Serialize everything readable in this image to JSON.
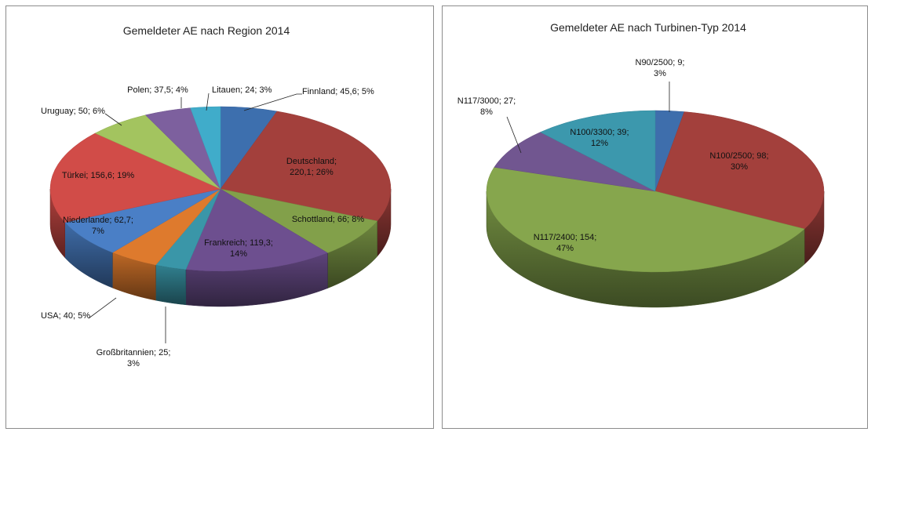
{
  "chart_data": [
    {
      "type": "pie",
      "title": "Gemeldeter AE nach Region 2014",
      "series": [
        {
          "name": "Finnland",
          "value": 45.6,
          "percent": 5,
          "color": "#3d6fae",
          "label": [
            "Finnland; 45,6; 5%"
          ]
        },
        {
          "name": "Deutschland",
          "value": 220.1,
          "percent": 26,
          "color": "#a3403c",
          "label": [
            "Deutschland;",
            "220,1; 26%"
          ]
        },
        {
          "name": "Schottland",
          "value": 66,
          "percent": 8,
          "color": "#82a04a",
          "label": [
            "Schottland; 66; 8%"
          ]
        },
        {
          "name": "Frankreich",
          "value": 119.3,
          "percent": 14,
          "color": "#6d4f8f",
          "label": [
            "Frankreich; 119,3;",
            "14%"
          ]
        },
        {
          "name": "Großbritannien",
          "value": 25,
          "percent": 3,
          "color": "#3a96a8",
          "label": [
            "Großbritannien; 25;",
            "3%"
          ]
        },
        {
          "name": "USA",
          "value": 40,
          "percent": 5,
          "color": "#de7a2d",
          "label": [
            "USA; 40; 5%"
          ]
        },
        {
          "name": "Niederlande",
          "value": 62.7,
          "percent": 7,
          "color": "#4a7fc6",
          "label": [
            "Niederlande; 62,7;",
            "7%"
          ]
        },
        {
          "name": "Türkei",
          "value": 156.6,
          "percent": 19,
          "color": "#d14c48",
          "label": [
            "Türkei; 156,6; 19%"
          ]
        },
        {
          "name": "Uruguay",
          "value": 50,
          "percent": 6,
          "color": "#a3c45f",
          "label": [
            "Uruguay; 50; 6%"
          ]
        },
        {
          "name": "Polen",
          "value": 37.5,
          "percent": 4,
          "color": "#7d609e",
          "label": [
            "Polen; 37,5; 4%"
          ]
        },
        {
          "name": "Litauen",
          "value": 24,
          "percent": 3,
          "color": "#40acca",
          "label": [
            "Litauen; 24; 3%"
          ]
        }
      ]
    },
    {
      "type": "pie",
      "title": "Gemeldeter AE nach Turbinen-Typ 2014",
      "series": [
        {
          "name": "N90/2500",
          "value": 9,
          "percent": 3,
          "color": "#3e6eac",
          "label": [
            "N90/2500;  9;",
            "3%"
          ]
        },
        {
          "name": "N100/2500",
          "value": 98,
          "percent": 30,
          "color": "#a3403c",
          "label": [
            "N100/2500;  98;",
            "30%"
          ]
        },
        {
          "name": "N117/2400",
          "value": 154,
          "percent": 47,
          "color": "#86a64d",
          "label": [
            "N117/2400;  154;",
            "47%"
          ]
        },
        {
          "name": "N117/3000",
          "value": 27,
          "percent": 8,
          "color": "#715690",
          "label": [
            "N117/3000;  27;",
            "8%"
          ]
        },
        {
          "name": "N100/3300",
          "value": 39,
          "percent": 12,
          "color": "#3c98ad",
          "label": [
            "N100/3300;  39;",
            "12%"
          ]
        }
      ]
    }
  ]
}
